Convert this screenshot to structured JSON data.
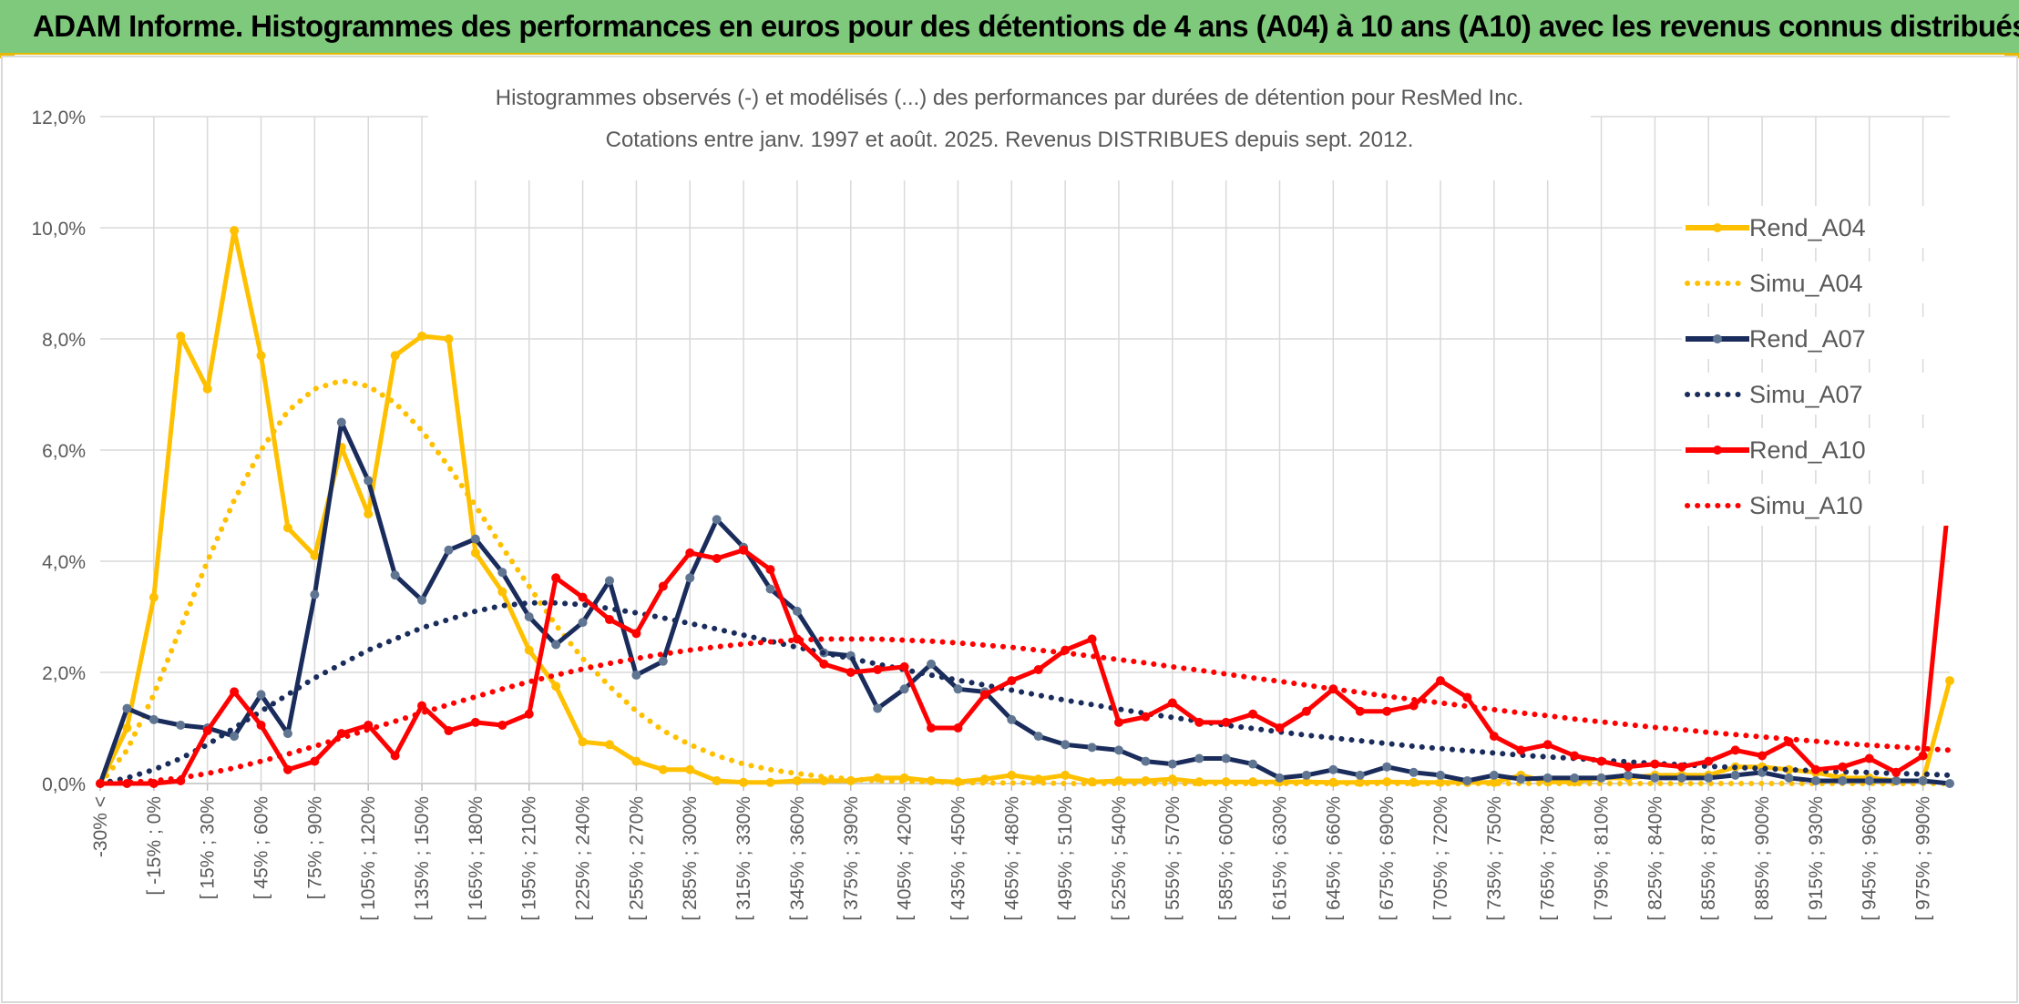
{
  "banner": {
    "title": "ADAM Informe. Histogrammes des performances en euros pour des détentions de 4 ans (A04) à 10 ans (A10) avec les revenus connus distribués"
  },
  "colors": {
    "banner_bg": "#7ec97b",
    "a04": "#ffc000",
    "a07": "#1a2c5b",
    "a10": "#ff0000",
    "grid": "#d9d9d9"
  },
  "chart_data": {
    "type": "line",
    "title": "Histogrammes observés (-) et modélisés (...) des performances par durées de détention pour ResMed Inc.",
    "subtitle": "Cotations entre janv. 1997 et août. 2025. Revenus DISTRIBUES depuis sept. 2012.",
    "ylim": [
      0,
      12
    ],
    "yticks": [
      "0,0%",
      "2,0%",
      "4,0%",
      "6,0%",
      "8,0%",
      "10,0%",
      "12,0%"
    ],
    "grid": true,
    "legend_position": "right",
    "x_labels": [
      "-30% <",
      "[ -15% ; 0%",
      "[ 15% ; 30%",
      "[ 45% ; 60%",
      "[ 75% ; 90%",
      "[ 105% ; 120%",
      "[ 135% ; 150%",
      "[ 165% ; 180%",
      "[ 195% ; 210%",
      "[ 225% ; 240%",
      "[ 255% ; 270%",
      "[ 285% ; 300%",
      "[ 315% ; 330%",
      "[ 345% ; 360%",
      "[ 375% ; 390%",
      "[ 405% ; 420%",
      "[ 435% ; 450%",
      "[ 465% ; 480%",
      "[ 495% ; 510%",
      "[ 525% ; 540%",
      "[ 555% ; 570%",
      "[ 585% ; 600%",
      "[ 615% ; 630%",
      "[ 645% ; 660%",
      "[ 675% ; 690%",
      "[ 705% ; 720%",
      "[ 735% ; 750%",
      "[ 765% ; 780%",
      "[ 795% ; 810%",
      "[ 825% ; 840%",
      "[ 855% ; 870%",
      "[ 885% ; 900%",
      "[ 915% ; 930%",
      "[ 945% ; 960%",
      "[ 975% ; 990%"
    ],
    "series": [
      {
        "name": "Rend_A04",
        "style": "solid",
        "color": "#ffc000",
        "values": [
          0.0,
          1.0,
          3.35,
          8.05,
          7.1,
          9.95,
          7.7,
          4.6,
          4.1,
          6.05,
          4.85,
          7.7,
          8.05,
          8.0,
          4.15,
          3.45,
          2.4,
          1.75,
          0.75,
          0.7,
          0.4,
          0.25,
          0.25,
          0.05,
          0.02,
          0.02,
          0.05,
          0.05,
          0.05,
          0.1,
          0.1,
          0.05,
          0.03,
          0.08,
          0.15,
          0.08,
          0.15,
          0.03,
          0.05,
          0.05,
          0.08,
          0.03,
          0.03,
          0.03,
          0.03,
          0.03,
          0.02,
          0.02,
          0.03,
          0.02,
          0.02,
          0.02,
          0.02,
          0.15,
          0.03,
          0.03,
          0.1,
          0.1,
          0.15,
          0.15,
          0.15,
          0.3,
          0.3,
          0.25,
          0.2,
          0.1,
          0.1,
          0.05,
          0.05,
          1.85
        ]
      },
      {
        "name": "Simu_A04",
        "style": "dotted",
        "color": "#ffc000",
        "values": [
          0.0,
          0.6,
          1.6,
          2.8,
          4.0,
          5.1,
          6.0,
          6.7,
          7.1,
          7.25,
          7.15,
          6.85,
          6.35,
          5.7,
          5.0,
          4.25,
          3.55,
          2.85,
          2.25,
          1.75,
          1.3,
          0.95,
          0.7,
          0.5,
          0.35,
          0.25,
          0.18,
          0.12,
          0.08,
          0.05,
          0.04,
          0.03,
          0.02,
          0.01,
          0.01,
          0.01,
          0.0,
          0.0,
          0.0,
          0.0,
          0.0,
          0.0,
          0.0,
          0.0,
          0.0,
          0.0,
          0.0,
          0.0,
          0.0,
          0.0,
          0.0,
          0.0,
          0.0,
          0.0,
          0.0,
          0.0,
          0.0,
          0.0,
          0.0,
          0.0,
          0.0,
          0.0,
          0.0,
          0.0,
          0.0,
          0.0,
          0.0,
          0.0,
          0.0,
          0.0
        ]
      },
      {
        "name": "Rend_A07",
        "style": "solid",
        "color": "#1a2c5b",
        "values": [
          0.0,
          1.35,
          1.15,
          1.05,
          1.0,
          0.85,
          1.6,
          0.9,
          3.4,
          6.5,
          5.45,
          3.75,
          3.3,
          4.2,
          4.4,
          3.8,
          3.0,
          2.5,
          2.9,
          3.65,
          1.95,
          2.2,
          3.7,
          4.75,
          4.25,
          3.5,
          3.1,
          2.35,
          2.3,
          1.35,
          1.7,
          2.15,
          1.7,
          1.65,
          1.15,
          0.85,
          0.7,
          0.65,
          0.6,
          0.4,
          0.35,
          0.45,
          0.45,
          0.35,
          0.1,
          0.15,
          0.25,
          0.15,
          0.3,
          0.2,
          0.15,
          0.05,
          0.15,
          0.08,
          0.1,
          0.1,
          0.1,
          0.15,
          0.1,
          0.1,
          0.1,
          0.15,
          0.2,
          0.1,
          0.05,
          0.05,
          0.05,
          0.05,
          0.05,
          0.0
        ]
      },
      {
        "name": "Simu_A07",
        "style": "dotted",
        "color": "#1a2c5b",
        "values": [
          0.0,
          0.1,
          0.25,
          0.45,
          0.7,
          1.0,
          1.3,
          1.6,
          1.9,
          2.15,
          2.4,
          2.6,
          2.8,
          2.95,
          3.1,
          3.2,
          3.25,
          3.25,
          3.22,
          3.15,
          3.07,
          2.98,
          2.88,
          2.78,
          2.67,
          2.56,
          2.45,
          2.35,
          2.25,
          2.15,
          2.05,
          1.95,
          1.86,
          1.77,
          1.68,
          1.59,
          1.5,
          1.42,
          1.34,
          1.26,
          1.19,
          1.12,
          1.05,
          0.99,
          0.93,
          0.87,
          0.82,
          0.77,
          0.72,
          0.67,
          0.63,
          0.59,
          0.55,
          0.51,
          0.48,
          0.45,
          0.42,
          0.39,
          0.36,
          0.34,
          0.31,
          0.29,
          0.27,
          0.25,
          0.23,
          0.21,
          0.2,
          0.18,
          0.17,
          0.15
        ]
      },
      {
        "name": "Rend_A10",
        "style": "solid",
        "color": "#ff0000",
        "values": [
          0.0,
          0.0,
          0.0,
          0.05,
          0.95,
          1.65,
          1.05,
          0.25,
          0.4,
          0.9,
          1.05,
          0.5,
          1.4,
          0.95,
          1.1,
          1.05,
          1.25,
          3.7,
          3.35,
          2.95,
          2.7,
          3.55,
          4.15,
          4.05,
          4.2,
          3.85,
          2.6,
          2.15,
          2.0,
          2.05,
          2.1,
          1.0,
          1.0,
          1.6,
          1.85,
          2.05,
          2.4,
          2.6,
          1.1,
          1.2,
          1.45,
          1.1,
          1.1,
          1.25,
          1.0,
          1.3,
          1.7,
          1.3,
          1.3,
          1.4,
          1.85,
          1.55,
          0.85,
          0.6,
          0.7,
          0.5,
          0.4,
          0.3,
          0.35,
          0.3,
          0.4,
          0.6,
          0.5,
          0.75,
          0.25,
          0.3,
          0.45,
          0.2,
          0.5,
          5.3
        ]
      },
      {
        "name": "Simu_A10",
        "style": "dotted",
        "color": "#ff0000",
        "values": [
          0.0,
          0.02,
          0.05,
          0.1,
          0.18,
          0.28,
          0.4,
          0.53,
          0.67,
          0.82,
          0.97,
          1.12,
          1.27,
          1.42,
          1.56,
          1.7,
          1.83,
          1.95,
          2.06,
          2.16,
          2.25,
          2.33,
          2.4,
          2.46,
          2.51,
          2.55,
          2.58,
          2.6,
          2.6,
          2.6,
          2.58,
          2.56,
          2.53,
          2.49,
          2.45,
          2.4,
          2.35,
          2.29,
          2.23,
          2.17,
          2.1,
          2.04,
          1.97,
          1.9,
          1.84,
          1.77,
          1.7,
          1.64,
          1.57,
          1.51,
          1.45,
          1.39,
          1.33,
          1.27,
          1.22,
          1.16,
          1.11,
          1.06,
          1.01,
          0.97,
          0.92,
          0.88,
          0.84,
          0.8,
          0.76,
          0.72,
          0.69,
          0.66,
          0.63,
          0.6
        ]
      }
    ]
  }
}
